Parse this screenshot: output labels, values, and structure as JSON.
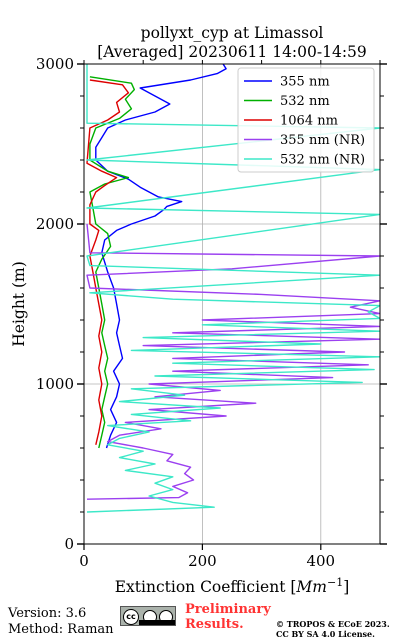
{
  "chart_data": {
    "type": "line",
    "title_line1": "pollyxt_cyp at Limassol",
    "title_line2": "[Averaged] 20230611 14:00-14:59",
    "xlabel": "Extinction Coefficient [",
    "xlabel_unit": "Mm",
    "xlabel_exp": "−1",
    "xlabel_end": "]",
    "ylabel": "Height (m)",
    "xlim": [
      0,
      500
    ],
    "ylim": [
      0,
      3000
    ],
    "xticks": [
      0,
      200,
      400
    ],
    "xtick_labels": [
      "0",
      "200",
      "400"
    ],
    "yticks": [
      0,
      1000,
      2000,
      3000
    ],
    "ytick_labels": [
      "0",
      "1000",
      "2000",
      "3000"
    ],
    "grid": true,
    "legend_position": "top-right",
    "series": [
      {
        "name": "355 nm",
        "color": "#0000ff",
        "points": [
          [
            38,
            600
          ],
          [
            45,
            680
          ],
          [
            55,
            760
          ],
          [
            45,
            840
          ],
          [
            55,
            920
          ],
          [
            60,
            1000
          ],
          [
            50,
            1080
          ],
          [
            65,
            1160
          ],
          [
            60,
            1240
          ],
          [
            55,
            1320
          ],
          [
            60,
            1400
          ],
          [
            55,
            1500
          ],
          [
            50,
            1600
          ],
          [
            40,
            1700
          ],
          [
            30,
            1820
          ],
          [
            35,
            1900
          ],
          [
            55,
            1960
          ],
          [
            80,
            2000
          ],
          [
            120,
            2050
          ],
          [
            135,
            2090
          ],
          [
            140,
            2110
          ],
          [
            165,
            2140
          ],
          [
            125,
            2170
          ],
          [
            95,
            2230
          ],
          [
            75,
            2280
          ],
          [
            40,
            2330
          ],
          [
            20,
            2400
          ],
          [
            20,
            2480
          ],
          [
            30,
            2540
          ],
          [
            40,
            2600
          ],
          [
            70,
            2650
          ],
          [
            120,
            2700
          ],
          [
            145,
            2750
          ],
          [
            120,
            2800
          ],
          [
            95,
            2850
          ],
          [
            180,
            2900
          ],
          [
            225,
            2940
          ],
          [
            240,
            2970
          ],
          [
            235,
            3000
          ]
        ]
      },
      {
        "name": "532 nm",
        "color": "#00b000",
        "points": [
          [
            25,
            600
          ],
          [
            30,
            680
          ],
          [
            35,
            760
          ],
          [
            30,
            840
          ],
          [
            35,
            920
          ],
          [
            40,
            1000
          ],
          [
            35,
            1080
          ],
          [
            40,
            1160
          ],
          [
            35,
            1240
          ],
          [
            30,
            1320
          ],
          [
            35,
            1400
          ],
          [
            30,
            1500
          ],
          [
            25,
            1600
          ],
          [
            20,
            1700
          ],
          [
            30,
            1780
          ],
          [
            45,
            1860
          ],
          [
            40,
            1940
          ],
          [
            20,
            2000
          ],
          [
            15,
            2100
          ],
          [
            10,
            2200
          ],
          [
            35,
            2250
          ],
          [
            75,
            2290
          ],
          [
            40,
            2330
          ],
          [
            10,
            2400
          ],
          [
            10,
            2500
          ],
          [
            20,
            2600
          ],
          [
            60,
            2660
          ],
          [
            80,
            2720
          ],
          [
            70,
            2780
          ],
          [
            85,
            2840
          ],
          [
            80,
            2880
          ],
          [
            10,
            2920
          ]
        ]
      },
      {
        "name": "1064 nm",
        "color": "#dd0000",
        "points": [
          [
            20,
            620
          ],
          [
            25,
            700
          ],
          [
            30,
            800
          ],
          [
            25,
            900
          ],
          [
            30,
            1000
          ],
          [
            25,
            1100
          ],
          [
            30,
            1200
          ],
          [
            25,
            1300
          ],
          [
            30,
            1400
          ],
          [
            25,
            1500
          ],
          [
            20,
            1600
          ],
          [
            15,
            1700
          ],
          [
            10,
            1800
          ],
          [
            20,
            1900
          ],
          [
            25,
            1960
          ],
          [
            10,
            2000
          ],
          [
            10,
            2120
          ],
          [
            20,
            2200
          ],
          [
            35,
            2240
          ],
          [
            55,
            2290
          ],
          [
            30,
            2330
          ],
          [
            5,
            2380
          ],
          [
            10,
            2600
          ],
          [
            40,
            2650
          ],
          [
            60,
            2700
          ],
          [
            55,
            2760
          ],
          [
            75,
            2820
          ],
          [
            65,
            2870
          ],
          [
            10,
            2900
          ]
        ]
      },
      {
        "name": "355 nm (NR)",
        "color": "#9b40f0",
        "points": [
          [
            5,
            280
          ],
          [
            160,
            290
          ],
          [
            175,
            320
          ],
          [
            150,
            360
          ],
          [
            185,
            400
          ],
          [
            170,
            440
          ],
          [
            180,
            480
          ],
          [
            140,
            520
          ],
          [
            150,
            560
          ],
          [
            100,
            600
          ],
          [
            40,
            640
          ],
          [
            60,
            680
          ],
          [
            130,
            720
          ],
          [
            70,
            760
          ],
          [
            240,
            800
          ],
          [
            110,
            840
          ],
          [
            290,
            880
          ],
          [
            120,
            920
          ],
          [
            230,
            960
          ],
          [
            110,
            1000
          ],
          [
            420,
            1040
          ],
          [
            150,
            1080
          ],
          [
            480,
            1120
          ],
          [
            150,
            1160
          ],
          [
            440,
            1200
          ],
          [
            100,
            1240
          ],
          [
            500,
            1280
          ],
          [
            150,
            1320
          ],
          [
            500,
            1360
          ],
          [
            200,
            1400
          ],
          [
            500,
            1440
          ],
          [
            450,
            1480
          ],
          [
            500,
            1520
          ],
          [
            300,
            1560
          ],
          [
            10,
            1600
          ],
          [
            5,
            1680
          ],
          [
            250,
            1720
          ],
          [
            500,
            1800
          ],
          [
            10,
            1820
          ],
          [
            5,
            2000
          ]
        ]
      },
      {
        "name": "532 nm (NR)",
        "color": "#3de8c8",
        "points": [
          [
            5,
            200
          ],
          [
            220,
            230
          ],
          [
            150,
            260
          ],
          [
            110,
            300
          ],
          [
            150,
            340
          ],
          [
            120,
            380
          ],
          [
            150,
            420
          ],
          [
            70,
            460
          ],
          [
            120,
            500
          ],
          [
            60,
            540
          ],
          [
            100,
            580
          ],
          [
            40,
            620
          ],
          [
            60,
            660
          ],
          [
            110,
            700
          ],
          [
            40,
            740
          ],
          [
            180,
            770
          ],
          [
            80,
            810
          ],
          [
            230,
            850
          ],
          [
            60,
            890
          ],
          [
            170,
            930
          ],
          [
            80,
            970
          ],
          [
            470,
            1010
          ],
          [
            120,
            1050
          ],
          [
            490,
            1090
          ],
          [
            150,
            1130
          ],
          [
            500,
            1170
          ],
          [
            80,
            1210
          ],
          [
            400,
            1250
          ],
          [
            100,
            1290
          ],
          [
            500,
            1330
          ],
          [
            200,
            1370
          ],
          [
            500,
            1410
          ],
          [
            480,
            1450
          ],
          [
            500,
            1490
          ],
          [
            150,
            1530
          ],
          [
            10,
            1570
          ],
          [
            500,
            1680
          ],
          [
            10,
            1740
          ],
          [
            5,
            1800
          ],
          [
            500,
            2060
          ],
          [
            5,
            2100
          ],
          [
            500,
            2340
          ],
          [
            5,
            2400
          ],
          [
            500,
            2600
          ],
          [
            5,
            2630
          ],
          [
            5,
            3000
          ]
        ]
      }
    ]
  },
  "footer": {
    "version": "Version: 3.6",
    "method": "Method: Raman",
    "preliminary_line1": "Preliminary",
    "preliminary_line2": "Results.",
    "copyright_line1": "© TROPOS & ECoE 2023.",
    "copyright_line2": "CC BY SA 4.0 License.",
    "license_badge_text": "cc"
  }
}
